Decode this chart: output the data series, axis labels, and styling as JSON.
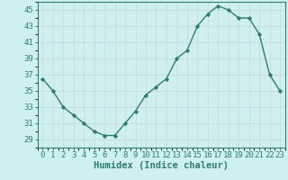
{
  "x": [
    0,
    1,
    2,
    3,
    4,
    5,
    6,
    7,
    8,
    9,
    10,
    11,
    12,
    13,
    14,
    15,
    16,
    17,
    18,
    19,
    20,
    21,
    22,
    23
  ],
  "y": [
    36.5,
    35.0,
    33.0,
    32.0,
    31.0,
    30.0,
    29.5,
    29.5,
    31.0,
    32.5,
    34.5,
    35.5,
    36.5,
    39.0,
    40.0,
    43.0,
    44.5,
    45.5,
    45.0,
    44.0,
    44.0,
    42.0,
    37.0,
    35.0
  ],
  "xlabel": "Humidex (Indice chaleur)",
  "ylim": [
    29,
    46
  ],
  "yticks": [
    29,
    31,
    33,
    35,
    37,
    39,
    41,
    43,
    45
  ],
  "xlim": [
    -0.5,
    23.5
  ],
  "xticks": [
    0,
    1,
    2,
    3,
    4,
    5,
    6,
    7,
    8,
    9,
    10,
    11,
    12,
    13,
    14,
    15,
    16,
    17,
    18,
    19,
    20,
    21,
    22,
    23
  ],
  "xtick_labels": [
    "0",
    "1",
    "2",
    "3",
    "4",
    "5",
    "6",
    "7",
    "8",
    "9",
    "10",
    "11",
    "12",
    "13",
    "14",
    "15",
    "16",
    "17",
    "18",
    "19",
    "20",
    "21",
    "22",
    "23"
  ],
  "line_color": "#2e7d6e",
  "marker": "D",
  "marker_size": 2.2,
  "bg_color": "#cff0f0",
  "grid_major_color": "#c8dede",
  "grid_minor_color": "#daeaea",
  "tick_label_fontsize": 6.5,
  "xlabel_fontsize": 7.5,
  "line_width": 1.0
}
